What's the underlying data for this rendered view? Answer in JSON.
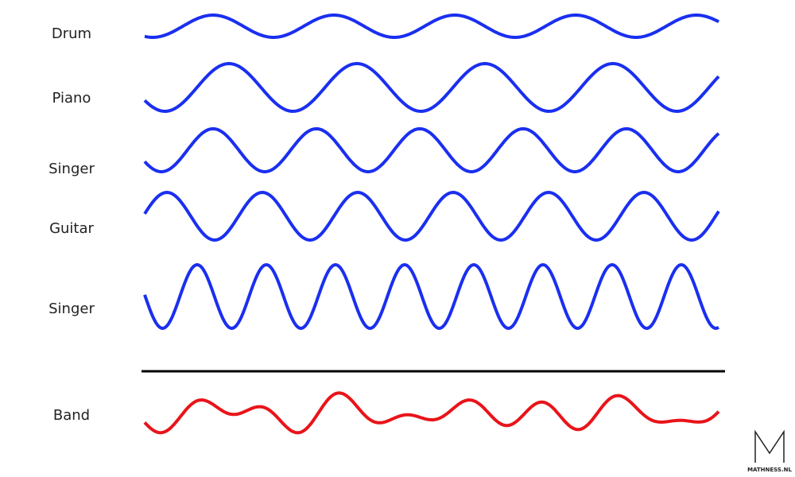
{
  "labels": [
    "Drum",
    "Piano",
    "Singer",
    "Guitar",
    "Singer"
  ],
  "sum_label": "Band",
  "logo": "MATHNESS.NL"
}
